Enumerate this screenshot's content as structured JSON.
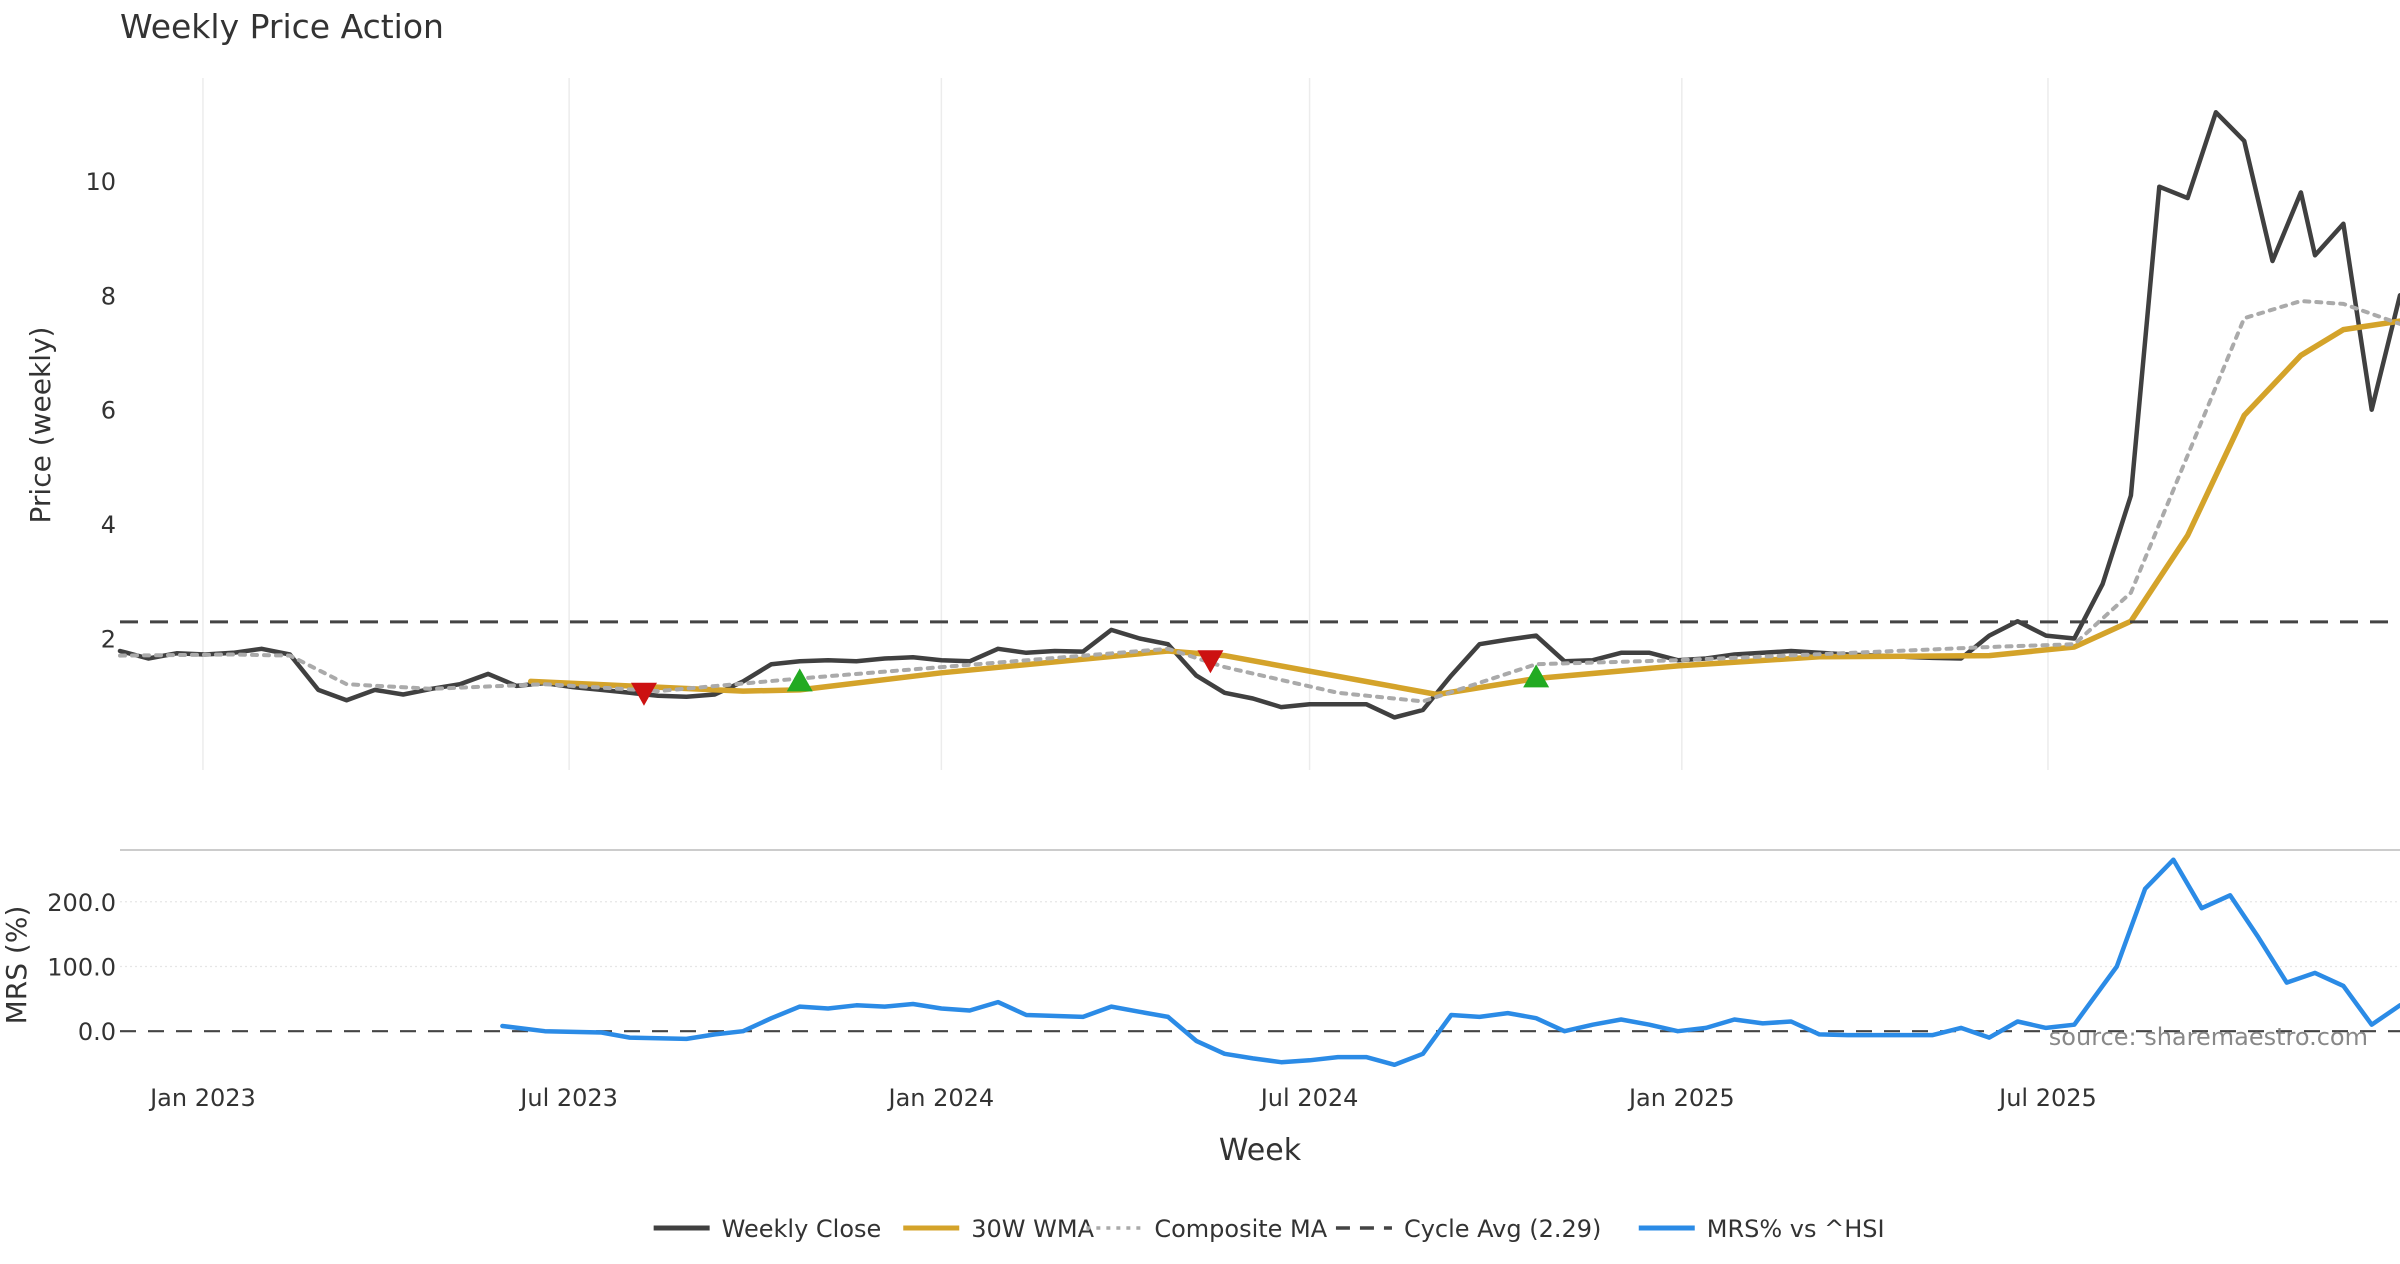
{
  "chart_data": [
    {
      "type": "line",
      "title": "Weekly Price Action",
      "ylabel": "Price (weekly)",
      "xlabel": "Week",
      "ylim": [
        -0.3,
        11.8
      ],
      "xlim": [
        "2022-11-21",
        "2025-12-22"
      ],
      "y_ticks": [
        2,
        4,
        6,
        8,
        10
      ],
      "x_ticks": [
        {
          "date": "2023-01-01",
          "label": "Jan 2023"
        },
        {
          "date": "2023-07-01",
          "label": "Jul 2023"
        },
        {
          "date": "2024-01-01",
          "label": "Jan 2024"
        },
        {
          "date": "2024-07-01",
          "label": "Jul 2024"
        },
        {
          "date": "2025-01-01",
          "label": "Jan 2025"
        },
        {
          "date": "2025-07-01",
          "label": "Jul 2025"
        }
      ],
      "x_grid": true,
      "legend_placement": "bottom-center",
      "series": [
        {
          "name": "Weekly Close",
          "color": "#404040",
          "style": "solid",
          "points": [
            [
              "2022-11-21",
              1.78
            ],
            [
              "2022-12-05",
              1.65
            ],
            [
              "2022-12-19",
              1.74
            ],
            [
              "2023-01-02",
              1.72
            ],
            [
              "2023-01-16",
              1.75
            ],
            [
              "2023-01-30",
              1.82
            ],
            [
              "2023-02-13",
              1.72
            ],
            [
              "2023-02-27",
              1.1
            ],
            [
              "2023-03-13",
              0.92
            ],
            [
              "2023-03-27",
              1.1
            ],
            [
              "2023-04-10",
              1.02
            ],
            [
              "2023-04-24",
              1.12
            ],
            [
              "2023-05-08",
              1.2
            ],
            [
              "2023-05-22",
              1.38
            ],
            [
              "2023-06-05",
              1.17
            ],
            [
              "2023-06-19",
              1.22
            ],
            [
              "2023-07-03",
              1.15
            ],
            [
              "2023-07-17",
              1.1
            ],
            [
              "2023-07-31",
              1.05
            ],
            [
              "2023-08-14",
              1.0
            ],
            [
              "2023-08-28",
              0.98
            ],
            [
              "2023-09-11",
              1.02
            ],
            [
              "2023-09-25",
              1.25
            ],
            [
              "2023-10-09",
              1.55
            ],
            [
              "2023-10-23",
              1.6
            ],
            [
              "2023-11-06",
              1.62
            ],
            [
              "2023-11-20",
              1.6
            ],
            [
              "2023-12-04",
              1.65
            ],
            [
              "2023-12-18",
              1.67
            ],
            [
              "2024-01-01",
              1.62
            ],
            [
              "2024-01-15",
              1.6
            ],
            [
              "2024-01-29",
              1.82
            ],
            [
              "2024-02-12",
              1.75
            ],
            [
              "2024-02-26",
              1.78
            ],
            [
              "2024-03-11",
              1.77
            ],
            [
              "2024-03-25",
              2.15
            ],
            [
              "2024-04-08",
              2.0
            ],
            [
              "2024-04-22",
              1.9
            ],
            [
              "2024-05-06",
              1.35
            ],
            [
              "2024-05-20",
              1.05
            ],
            [
              "2024-06-03",
              0.95
            ],
            [
              "2024-06-17",
              0.8
            ],
            [
              "2024-07-01",
              0.85
            ],
            [
              "2024-07-15",
              0.85
            ],
            [
              "2024-07-29",
              0.85
            ],
            [
              "2024-08-12",
              0.62
            ],
            [
              "2024-08-26",
              0.75
            ],
            [
              "2024-09-09",
              1.35
            ],
            [
              "2024-09-23",
              1.9
            ],
            [
              "2024-10-07",
              1.98
            ],
            [
              "2024-10-21",
              2.05
            ],
            [
              "2024-11-04",
              1.6
            ],
            [
              "2024-11-18",
              1.62
            ],
            [
              "2024-12-02",
              1.75
            ],
            [
              "2024-12-16",
              1.75
            ],
            [
              "2024-12-30",
              1.62
            ],
            [
              "2025-01-13",
              1.65
            ],
            [
              "2025-01-27",
              1.72
            ],
            [
              "2025-02-10",
              1.75
            ],
            [
              "2025-02-24",
              1.78
            ],
            [
              "2025-03-10",
              1.75
            ],
            [
              "2025-03-24",
              1.72
            ],
            [
              "2025-04-07",
              1.7
            ],
            [
              "2025-04-21",
              1.68
            ],
            [
              "2025-05-05",
              1.66
            ],
            [
              "2025-05-19",
              1.65
            ],
            [
              "2025-06-02",
              2.05
            ],
            [
              "2025-06-16",
              2.3
            ],
            [
              "2025-06-30",
              2.05
            ],
            [
              "2025-07-14",
              2.0
            ],
            [
              "2025-07-28",
              2.95
            ],
            [
              "2025-08-11",
              4.5
            ],
            [
              "2025-08-25",
              9.9
            ],
            [
              "2025-09-08",
              9.7
            ],
            [
              "2025-09-22",
              11.2
            ],
            [
              "2025-10-06",
              10.7
            ],
            [
              "2025-10-20",
              8.6
            ],
            [
              "2025-11-03",
              9.8
            ],
            [
              "2025-11-10",
              8.7
            ],
            [
              "2025-11-24",
              9.25
            ],
            [
              "2025-12-08",
              6.0
            ],
            [
              "2025-12-22",
              8.0
            ]
          ]
        },
        {
          "name": "30W WMA",
          "color": "#d4a32a",
          "style": "solid",
          "points": [
            [
              "2023-06-12",
              1.25
            ],
            [
              "2023-09-25",
              1.08
            ],
            [
              "2023-10-23",
              1.1
            ],
            [
              "2024-01-01",
              1.4
            ],
            [
              "2024-04-22",
              1.78
            ],
            [
              "2024-05-20",
              1.7
            ],
            [
              "2024-09-02",
              1.02
            ],
            [
              "2024-10-21",
              1.3
            ],
            [
              "2024-12-30",
              1.52
            ],
            [
              "2025-03-10",
              1.68
            ],
            [
              "2025-06-02",
              1.7
            ],
            [
              "2025-07-14",
              1.85
            ],
            [
              "2025-08-11",
              2.3
            ],
            [
              "2025-09-08",
              3.8
            ],
            [
              "2025-10-06",
              5.9
            ],
            [
              "2025-11-03",
              6.95
            ],
            [
              "2025-11-24",
              7.4
            ],
            [
              "2025-12-22",
              7.55
            ]
          ]
        },
        {
          "name": "Composite MA",
          "color": "#aaaaaa",
          "style": "dotted",
          "points": [
            [
              "2022-11-21",
              1.7
            ],
            [
              "2023-01-16",
              1.72
            ],
            [
              "2023-02-13",
              1.7
            ],
            [
              "2023-03-13",
              1.2
            ],
            [
              "2023-04-24",
              1.12
            ],
            [
              "2023-06-19",
              1.2
            ],
            [
              "2023-08-14",
              1.08
            ],
            [
              "2023-10-23",
              1.3
            ],
            [
              "2024-01-01",
              1.5
            ],
            [
              "2024-04-22",
              1.82
            ],
            [
              "2024-05-20",
              1.5
            ],
            [
              "2024-07-15",
              1.05
            ],
            [
              "2024-08-26",
              0.9
            ],
            [
              "2024-10-21",
              1.55
            ],
            [
              "2024-12-30",
              1.62
            ],
            [
              "2025-06-02",
              1.85
            ],
            [
              "2025-07-14",
              1.9
            ],
            [
              "2025-08-11",
              2.8
            ],
            [
              "2025-09-08",
              5.2
            ],
            [
              "2025-10-06",
              7.6
            ],
            [
              "2025-11-03",
              7.9
            ],
            [
              "2025-11-24",
              7.85
            ],
            [
              "2025-12-22",
              7.5
            ]
          ]
        },
        {
          "name": "Cycle Avg (2.29)",
          "color": "#444444",
          "style": "dashed",
          "y": 2.29
        }
      ],
      "markers": [
        {
          "kind": "sell",
          "color": "#cc1111",
          "points": [
            [
              "2023-08-07",
              1.05
            ],
            [
              "2024-05-13",
              1.62
            ]
          ]
        },
        {
          "kind": "buy",
          "color": "#22aa22",
          "points": [
            [
              "2023-10-23",
              1.25
            ],
            [
              "2024-10-21",
              1.32
            ]
          ]
        }
      ]
    },
    {
      "type": "line",
      "title": "",
      "ylabel": "MRS (%)",
      "ylim": [
        -60,
        280
      ],
      "y_ticks": [
        {
          "value": 0,
          "label": "0.0"
        },
        {
          "value": 100,
          "label": "100.0"
        },
        {
          "value": 200,
          "label": "200.0"
        }
      ],
      "zero_line": true,
      "annotation": "source: sharemaestro.com",
      "series": [
        {
          "name": "MRS% vs ^HSI",
          "color": "#2b8be6",
          "style": "solid",
          "points": [
            [
              "2023-05-29",
              8
            ],
            [
              "2023-06-19",
              0
            ],
            [
              "2023-07-17",
              -2
            ],
            [
              "2023-07-31",
              -10
            ],
            [
              "2023-08-28",
              -12
            ],
            [
              "2023-09-11",
              -5
            ],
            [
              "2023-09-25",
              0
            ],
            [
              "2023-10-09",
              20
            ],
            [
              "2023-10-23",
              38
            ],
            [
              "2023-11-06",
              35
            ],
            [
              "2023-11-20",
              40
            ],
            [
              "2023-12-04",
              38
            ],
            [
              "2023-12-18",
              42
            ],
            [
              "2024-01-01",
              35
            ],
            [
              "2024-01-15",
              32
            ],
            [
              "2024-01-29",
              45
            ],
            [
              "2024-02-12",
              25
            ],
            [
              "2024-03-11",
              22
            ],
            [
              "2024-03-25",
              38
            ],
            [
              "2024-04-08",
              30
            ],
            [
              "2024-04-22",
              22
            ],
            [
              "2024-05-06",
              -15
            ],
            [
              "2024-05-20",
              -35
            ],
            [
              "2024-06-03",
              -42
            ],
            [
              "2024-06-17",
              -48
            ],
            [
              "2024-07-01",
              -45
            ],
            [
              "2024-07-15",
              -40
            ],
            [
              "2024-07-29",
              -40
            ],
            [
              "2024-08-12",
              -52
            ],
            [
              "2024-08-26",
              -35
            ],
            [
              "2024-09-09",
              25
            ],
            [
              "2024-09-23",
              22
            ],
            [
              "2024-10-07",
              28
            ],
            [
              "2024-10-21",
              20
            ],
            [
              "2024-11-04",
              0
            ],
            [
              "2024-11-18",
              10
            ],
            [
              "2024-12-02",
              18
            ],
            [
              "2024-12-16",
              10
            ],
            [
              "2024-12-30",
              0
            ],
            [
              "2025-01-13",
              5
            ],
            [
              "2025-01-27",
              18
            ],
            [
              "2025-02-10",
              12
            ],
            [
              "2025-02-24",
              15
            ],
            [
              "2025-03-10",
              -5
            ],
            [
              "2025-03-24",
              -6
            ],
            [
              "2025-05-05",
              -6
            ],
            [
              "2025-05-19",
              5
            ],
            [
              "2025-06-02",
              -10
            ],
            [
              "2025-06-16",
              15
            ],
            [
              "2025-06-30",
              5
            ],
            [
              "2025-07-14",
              10
            ],
            [
              "2025-07-21",
              40
            ],
            [
              "2025-08-04",
              100
            ],
            [
              "2025-08-18",
              220
            ],
            [
              "2025-09-01",
              265
            ],
            [
              "2025-09-15",
              190
            ],
            [
              "2025-09-29",
              210
            ],
            [
              "2025-10-13",
              145
            ],
            [
              "2025-10-27",
              75
            ],
            [
              "2025-11-10",
              90
            ],
            [
              "2025-11-24",
              70
            ],
            [
              "2025-12-08",
              10
            ],
            [
              "2025-12-22",
              40
            ]
          ]
        }
      ]
    }
  ],
  "legend": [
    {
      "label": "Weekly Close",
      "color": "#404040",
      "style": "solid"
    },
    {
      "label": "30W WMA",
      "color": "#d4a32a",
      "style": "solid"
    },
    {
      "label": "Composite MA",
      "color": "#aaaaaa",
      "style": "dotted"
    },
    {
      "label": "Cycle Avg (2.29)",
      "color": "#444444",
      "style": "dashed"
    },
    {
      "label": "MRS% vs ^HSI",
      "color": "#2b8be6",
      "style": "solid"
    }
  ]
}
